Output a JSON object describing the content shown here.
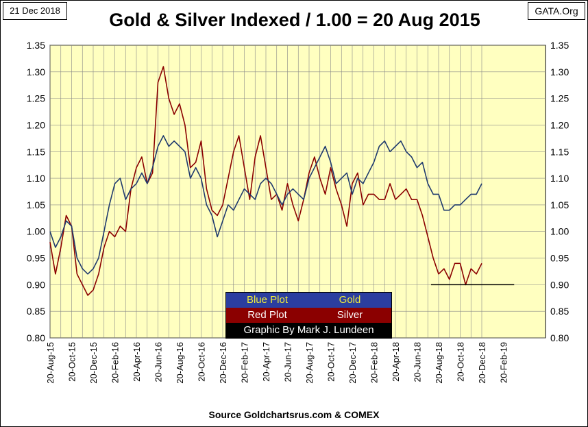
{
  "header": {
    "date": "21 Dec 2018",
    "site": "GATA.Org",
    "title": "Gold & Silver Indexed / 1.00 = 20 Aug 2015"
  },
  "footer": {
    "source": "Source Goldchartsrus.com & COMEX"
  },
  "legend": {
    "row1_left": "Blue Plot",
    "row1_right": "Gold",
    "row2_left": "Red Plot",
    "row2_right": "Silver",
    "row3": "Graphic By Mark J. Lundeen"
  },
  "colors": {
    "plot_bg": "#ffffc0",
    "grid": "#888888",
    "gold_line": "#1f3a6e",
    "silver_line": "#8b0000",
    "legend_blue": "#2b3ea0",
    "legend_yellow": "#f2ee3a",
    "legend_red": "#8b0000"
  },
  "chart_data": {
    "type": "line",
    "title": "Gold & Silver Indexed / 1.00 = 20 Aug 2015",
    "xlabel": "",
    "ylabel": "",
    "ylim": [
      0.8,
      1.35
    ],
    "y_ticks": [
      "0.80",
      "0.85",
      "0.90",
      "0.95",
      "1.00",
      "1.05",
      "1.10",
      "1.15",
      "1.20",
      "1.25",
      "1.30",
      "1.35"
    ],
    "x_tick_labels": [
      "20-Aug-15",
      "20-Oct-15",
      "20-Dec-15",
      "20-Feb-16",
      "20-Apr-16",
      "20-Jun-16",
      "20-Aug-16",
      "20-Oct-16",
      "20-Dec-16",
      "20-Feb-17",
      "20-Apr-17",
      "20-Jun-17",
      "20-Aug-17",
      "20-Oct-17",
      "20-Dec-17",
      "20-Feb-18",
      "20-Apr-18",
      "20-Jun-18",
      "20-Aug-18",
      "20-Oct-18",
      "20-Dec-18",
      "20-Feb-19"
    ],
    "x_month_positions": [
      0,
      1,
      2,
      3,
      4,
      5,
      6,
      7,
      8,
      9,
      10,
      11,
      12,
      13,
      14,
      15,
      16,
      17,
      18,
      19,
      20,
      21,
      22,
      23,
      24,
      25,
      26,
      27,
      28,
      29,
      30,
      31,
      32,
      33,
      34,
      35,
      36,
      37,
      38,
      39,
      40
    ],
    "grid": true,
    "series": [
      {
        "name": "Gold",
        "x": [
          0,
          0.5,
          1,
          1.5,
          2,
          2.5,
          3,
          3.5,
          4,
          4.5,
          5,
          5.5,
          6,
          6.5,
          7,
          7.5,
          8,
          8.5,
          9,
          9.5,
          10,
          10.5,
          11,
          11.5,
          12,
          12.5,
          13,
          13.5,
          14,
          14.5,
          15,
          15.5,
          16,
          16.5,
          17,
          17.5,
          18,
          18.5,
          19,
          19.5,
          20,
          20.5,
          21,
          21.5,
          22,
          22.5,
          23,
          23.5,
          24,
          24.5,
          25,
          25.5,
          26,
          26.5,
          27,
          27.5,
          28,
          28.5,
          29,
          29.5,
          30,
          30.5,
          31,
          31.5,
          32,
          32.5,
          33,
          33.5,
          34,
          34.5,
          35,
          35.5,
          36,
          36.5,
          37,
          37.5,
          38,
          38.5,
          39,
          39.5,
          40
        ],
        "values": [
          1.0,
          0.97,
          0.99,
          1.02,
          1.01,
          0.95,
          0.93,
          0.92,
          0.93,
          0.95,
          1.0,
          1.05,
          1.09,
          1.1,
          1.06,
          1.08,
          1.09,
          1.11,
          1.09,
          1.12,
          1.16,
          1.18,
          1.16,
          1.17,
          1.16,
          1.15,
          1.1,
          1.12,
          1.1,
          1.05,
          1.03,
          0.99,
          1.02,
          1.05,
          1.04,
          1.06,
          1.08,
          1.07,
          1.06,
          1.09,
          1.1,
          1.09,
          1.07,
          1.05,
          1.07,
          1.08,
          1.07,
          1.06,
          1.1,
          1.12,
          1.14,
          1.16,
          1.13,
          1.09,
          1.1,
          1.11,
          1.07,
          1.1,
          1.09,
          1.11,
          1.13,
          1.16,
          1.17,
          1.15,
          1.16,
          1.17,
          1.15,
          1.14,
          1.12,
          1.13,
          1.09,
          1.07,
          1.07,
          1.04,
          1.04,
          1.05,
          1.05,
          1.06,
          1.07,
          1.07,
          1.09
        ]
      },
      {
        "name": "Silver",
        "x": [
          0,
          0.5,
          1,
          1.5,
          2,
          2.5,
          3,
          3.5,
          4,
          4.5,
          5,
          5.5,
          6,
          6.5,
          7,
          7.5,
          8,
          8.5,
          9,
          9.5,
          10,
          10.5,
          11,
          11.5,
          12,
          12.5,
          13,
          13.5,
          14,
          14.5,
          15,
          15.5,
          16,
          16.5,
          17,
          17.5,
          18,
          18.5,
          19,
          19.5,
          20,
          20.5,
          21,
          21.5,
          22,
          22.5,
          23,
          23.5,
          24,
          24.5,
          25,
          25.5,
          26,
          26.5,
          27,
          27.5,
          28,
          28.5,
          29,
          29.5,
          30,
          30.5,
          31,
          31.5,
          32,
          32.5,
          33,
          33.5,
          34,
          34.5,
          35,
          35.5,
          36,
          36.5,
          37,
          37.5,
          38,
          38.5,
          39,
          39.5,
          40
        ],
        "values": [
          0.98,
          0.92,
          0.97,
          1.03,
          1.01,
          0.92,
          0.9,
          0.88,
          0.89,
          0.92,
          0.97,
          1.0,
          0.99,
          1.01,
          1.0,
          1.08,
          1.12,
          1.14,
          1.09,
          1.11,
          1.28,
          1.31,
          1.25,
          1.22,
          1.24,
          1.2,
          1.12,
          1.13,
          1.17,
          1.08,
          1.04,
          1.03,
          1.05,
          1.1,
          1.15,
          1.18,
          1.12,
          1.06,
          1.14,
          1.18,
          1.12,
          1.06,
          1.07,
          1.04,
          1.09,
          1.05,
          1.02,
          1.06,
          1.11,
          1.14,
          1.1,
          1.07,
          1.12,
          1.08,
          1.05,
          1.01,
          1.09,
          1.11,
          1.05,
          1.07,
          1.07,
          1.06,
          1.06,
          1.09,
          1.06,
          1.07,
          1.08,
          1.06,
          1.06,
          1.03,
          0.99,
          0.95,
          0.92,
          0.93,
          0.91,
          0.94,
          0.94,
          0.9,
          0.93,
          0.92,
          0.94
        ]
      }
    ],
    "reference_line": {
      "value": 0.9,
      "x_start": 35.3,
      "x_end": 43
    }
  }
}
